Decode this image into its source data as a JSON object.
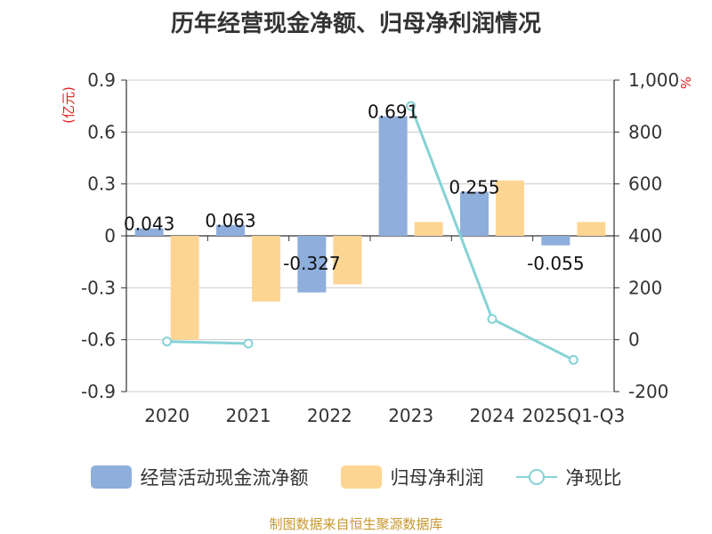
{
  "chart_data": {
    "type": "bar",
    "title": "历年经营现金净额、归母净利润情况",
    "categories": [
      "2020",
      "2021",
      "2022",
      "2023",
      "2024",
      "2025Q1-Q3"
    ],
    "series": [
      {
        "name": "经营活动现金流净额",
        "kind": "bar",
        "axis": "left",
        "color": "#8eaedb",
        "values": [
          0.043,
          0.063,
          -0.327,
          0.691,
          0.255,
          -0.055
        ],
        "labels": [
          "0.043",
          "0.063",
          "-0.327",
          "0.691",
          "0.255",
          "-0.055"
        ]
      },
      {
        "name": "归母净利润",
        "kind": "bar",
        "axis": "left",
        "color": "#fdd593",
        "values": [
          -0.6,
          -0.38,
          -0.28,
          0.08,
          0.32,
          0.08
        ]
      },
      {
        "name": "净现比",
        "kind": "line",
        "axis": "right",
        "color": "#86d2d6",
        "values": [
          -7,
          -15,
          null,
          900,
          80,
          -78
        ]
      }
    ],
    "left_axis": {
      "unit": "(亿元)",
      "ylim": [
        -0.9,
        0.9
      ],
      "ticks": [
        -0.9,
        -0.6,
        -0.3,
        0,
        0.3,
        0.6,
        0.9
      ],
      "tick_labels": [
        "-0.9",
        "-0.6",
        "-0.3",
        "0",
        "0.3",
        "0.6",
        "0.9"
      ]
    },
    "right_axis": {
      "unit": "%",
      "ylim": [
        -200,
        1000
      ],
      "ticks": [
        -200,
        0,
        200,
        400,
        600,
        800,
        1000
      ],
      "tick_labels": [
        "-200",
        "0",
        "200",
        "400",
        "600",
        "800",
        "1,000"
      ]
    },
    "grid": true,
    "legend_position": "bottom"
  },
  "source": "制图数据来自恒生聚源数据库"
}
